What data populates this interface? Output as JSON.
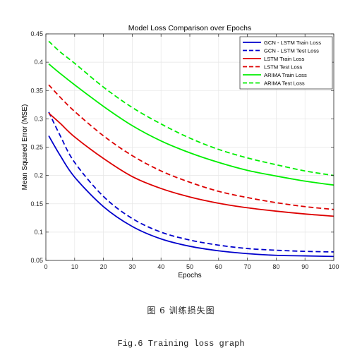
{
  "chart_data": {
    "type": "line",
    "title": "Model Loss Comparison over Epochs",
    "xlabel": "Epochs",
    "ylabel": "Mean Squared Error (MSE)",
    "xlim": [
      0,
      100
    ],
    "ylim": [
      0.05,
      0.45
    ],
    "xticks": [
      0,
      10,
      20,
      30,
      40,
      50,
      60,
      70,
      80,
      90,
      100
    ],
    "yticks": [
      0.05,
      0.1,
      0.15,
      0.2,
      0.25,
      0.3,
      0.35,
      0.4,
      0.45
    ],
    "grid": true,
    "legend_position": "top-right",
    "x": [
      1,
      5,
      10,
      20,
      30,
      40,
      50,
      60,
      70,
      80,
      90,
      100
    ],
    "series": [
      {
        "name": "GCN - LSTM Train Loss",
        "color": "#0000cc",
        "dash": "solid",
        "values": [
          0.27,
          0.235,
          0.197,
          0.145,
          0.11,
          0.088,
          0.075,
          0.067,
          0.062,
          0.059,
          0.058,
          0.057
        ]
      },
      {
        "name": "GCN - LSTM Test Loss",
        "color": "#0000cc",
        "dash": "dashed",
        "values": [
          0.312,
          0.27,
          0.223,
          0.163,
          0.124,
          0.1,
          0.086,
          0.077,
          0.071,
          0.068,
          0.066,
          0.065
        ]
      },
      {
        "name": "LSTM Train Loss",
        "color": "#dd0000",
        "dash": "solid",
        "values": [
          0.31,
          0.292,
          0.268,
          0.23,
          0.198,
          0.177,
          0.162,
          0.151,
          0.143,
          0.137,
          0.132,
          0.128
        ]
      },
      {
        "name": "LSTM Test Loss",
        "color": "#dd0000",
        "dash": "dashed",
        "values": [
          0.36,
          0.338,
          0.313,
          0.27,
          0.235,
          0.208,
          0.188,
          0.172,
          0.161,
          0.152,
          0.145,
          0.14
        ]
      },
      {
        "name": "ARIMA Train Loss",
        "color": "#00ee00",
        "dash": "solid",
        "values": [
          0.397,
          0.38,
          0.36,
          0.322,
          0.288,
          0.261,
          0.24,
          0.223,
          0.209,
          0.199,
          0.19,
          0.183
        ]
      },
      {
        "name": "ARIMA Test Loss",
        "color": "#00ee00",
        "dash": "dashed",
        "values": [
          0.437,
          0.418,
          0.398,
          0.356,
          0.32,
          0.291,
          0.266,
          0.246,
          0.231,
          0.219,
          0.208,
          0.2
        ]
      }
    ]
  },
  "captions": {
    "cn": "图 6   训练损失图",
    "en": "Fig.6  Training loss graph"
  }
}
